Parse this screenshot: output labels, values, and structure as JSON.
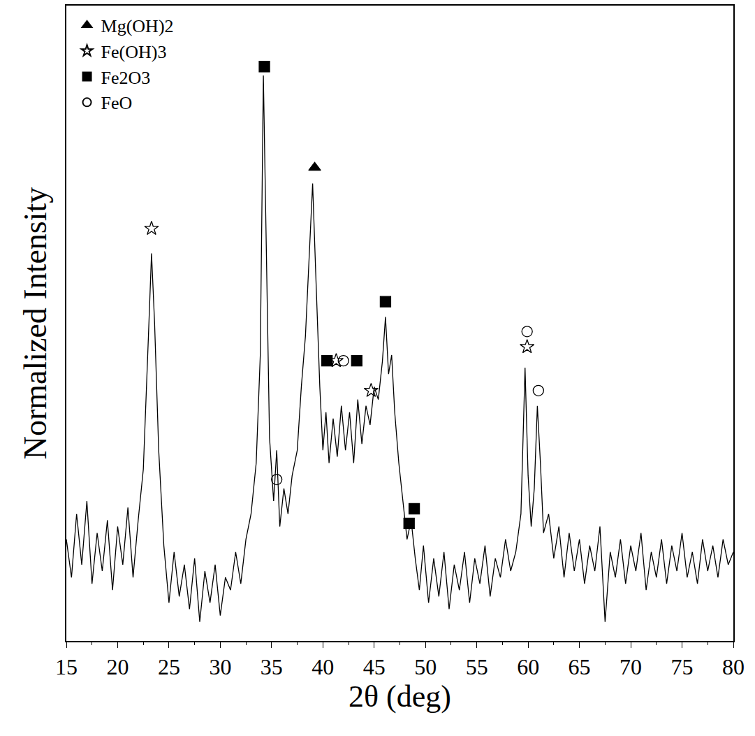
{
  "chart_data": {
    "type": "line",
    "x_label": "2θ (deg)",
    "y_label": "Normalized Intensity",
    "xlim": [
      15,
      80
    ],
    "xticks": [
      15,
      20,
      25,
      30,
      35,
      40,
      45,
      50,
      55,
      60,
      65,
      70,
      75,
      80
    ],
    "ylim": [
      0,
      100
    ],
    "tick_labels": "x",
    "grid": false,
    "legend": "upper left",
    "color": "#000000",
    "x": [
      15.0,
      15.5,
      16.0,
      16.5,
      17.0,
      17.5,
      18.0,
      18.5,
      19.0,
      19.5,
      20.0,
      20.5,
      21.0,
      21.5,
      22.0,
      22.5,
      23.0,
      23.3,
      23.6,
      24.0,
      24.5,
      25.0,
      25.5,
      26.0,
      26.5,
      27.0,
      27.5,
      28.0,
      28.5,
      29.0,
      29.5,
      30.0,
      30.5,
      31.0,
      31.5,
      32.0,
      32.5,
      33.0,
      33.5,
      33.9,
      34.2,
      34.5,
      34.8,
      35.2,
      35.5,
      35.8,
      36.2,
      36.6,
      37.0,
      37.5,
      37.9,
      38.3,
      38.7,
      39.0,
      39.3,
      39.7,
      40.0,
      40.3,
      40.6,
      41.0,
      41.4,
      41.8,
      42.2,
      42.6,
      43.0,
      43.4,
      43.8,
      44.2,
      44.6,
      45.0,
      45.4,
      45.8,
      46.1,
      46.4,
      46.7,
      47.0,
      47.4,
      47.8,
      48.2,
      48.6,
      49.0,
      49.4,
      49.8,
      50.3,
      50.8,
      51.3,
      51.8,
      52.3,
      52.8,
      53.3,
      53.8,
      54.3,
      54.8,
      55.3,
      55.8,
      56.3,
      56.8,
      57.3,
      57.8,
      58.3,
      58.8,
      59.3,
      59.7,
      60.0,
      60.3,
      60.6,
      60.9,
      61.2,
      61.5,
      62.0,
      62.5,
      63.0,
      63.5,
      64.0,
      64.5,
      65.0,
      65.5,
      66.0,
      66.5,
      67.0,
      67.5,
      68.0,
      68.5,
      69.0,
      69.5,
      70.0,
      70.5,
      71.0,
      71.5,
      72.0,
      72.5,
      73.0,
      73.5,
      74.0,
      74.5,
      75.0,
      75.5,
      76.0,
      76.5,
      77.0,
      77.5,
      78.0,
      78.5,
      79.0,
      79.5,
      80.0
    ],
    "values": [
      16,
      10,
      20,
      12,
      22,
      9,
      17,
      11,
      19,
      8,
      18,
      12,
      21,
      10,
      19,
      27,
      48,
      61,
      50,
      30,
      15,
      6,
      14,
      7,
      12,
      5,
      13,
      3,
      11,
      6,
      12,
      4,
      10,
      8,
      14,
      9,
      16,
      20,
      28,
      45,
      89,
      60,
      32,
      22,
      30,
      18,
      24,
      20,
      26,
      30,
      40,
      48,
      62,
      72,
      58,
      40,
      30,
      36,
      28,
      35,
      29,
      37,
      30,
      36,
      28,
      38,
      31,
      37,
      34,
      40,
      38,
      44,
      51,
      42,
      45,
      36,
      28,
      22,
      16,
      19,
      13,
      8,
      15,
      6,
      13,
      7,
      14,
      5,
      12,
      8,
      14,
      6,
      13,
      9,
      15,
      7,
      13,
      10,
      16,
      11,
      14,
      20,
      43,
      26,
      18,
      24,
      37,
      28,
      17,
      20,
      13,
      18,
      10,
      17,
      11,
      16,
      9,
      15,
      11,
      18,
      3,
      14,
      10,
      16,
      9,
      15,
      11,
      17,
      8,
      14,
      10,
      16,
      9,
      15,
      11,
      17,
      10,
      14,
      9,
      16,
      11,
      15,
      10,
      16,
      12,
      14
    ],
    "series": [
      {
        "name": "Mg(OH)2",
        "marker": "triangle-up",
        "color": "#000000",
        "x": [
          39.2
        ],
        "values": [
          74.5
        ]
      },
      {
        "name": "Fe(OH)3",
        "marker": "star-open",
        "color": "#000000",
        "x": [
          23.3,
          41.3,
          44.7,
          59.9
        ],
        "values": [
          64.9,
          44.1,
          39.4,
          46.3
        ]
      },
      {
        "name": "Fe2O3",
        "marker": "square",
        "color": "#000000",
        "x": [
          34.3,
          40.4,
          43.3,
          46.1,
          48.4,
          48.9
        ],
        "values": [
          90.4,
          44.1,
          44.1,
          53.4,
          18.5,
          20.8
        ]
      },
      {
        "name": "FeO",
        "marker": "circle-open",
        "color": "#000000",
        "x": [
          35.5,
          42.0,
          59.9,
          61.0
        ],
        "values": [
          25.4,
          44.1,
          48.7,
          39.4
        ]
      }
    ]
  }
}
